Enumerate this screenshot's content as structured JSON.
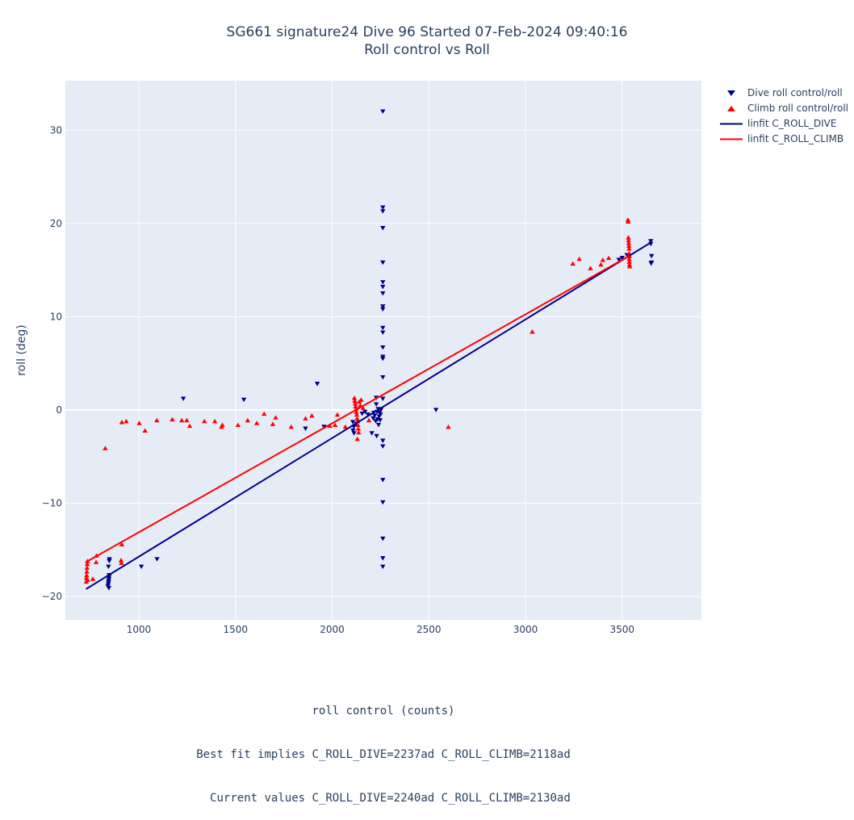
{
  "title": {
    "line1": "SG661 signature24 Dive 96 Started 07-Feb-2024 09:40:16",
    "line2": "Roll control vs Roll"
  },
  "x_label_lines": {
    "line1": "roll control (counts)",
    "line2": "Best fit implies C_ROLL_DIVE=2237ad C_ROLL_CLIMB=2118ad",
    "line3": "  Current values C_ROLL_DIVE=2240ad C_ROLL_CLIMB=2130ad"
  },
  "colors": {
    "plot_bg": "#e5ecf6",
    "grid": "#ffffff",
    "tick_text": "#2a3f5f",
    "dive": "#00008b",
    "climb": "#ff0000"
  },
  "legend": [
    {
      "label": "Dive roll control/roll",
      "symbol": "triangle-down",
      "color": "#00008b"
    },
    {
      "label": "Climb roll control/roll",
      "symbol": "triangle-up",
      "color": "#ff0000"
    },
    {
      "label": "linfit C_ROLL_DIVE",
      "symbol": "line",
      "color": "#00008b"
    },
    {
      "label": "linfit C_ROLL_CLIMB",
      "symbol": "line",
      "color": "#ff0000"
    }
  ],
  "chart_data": {
    "type": "scatter",
    "title": "SG661 signature24 Dive 96 Started 07-Feb-2024 09:40:16 / Roll control vs Roll",
    "xlabel": "roll control (counts)",
    "ylabel": "roll (deg)",
    "xlim": [
      620,
      3910
    ],
    "ylim": [
      -22.5,
      35.3
    ],
    "xticks": [
      1000,
      1500,
      2000,
      2500,
      3000,
      3500
    ],
    "yticks": [
      -20,
      -10,
      0,
      10,
      20,
      30
    ],
    "grid": true,
    "legend_position": "top-right outside",
    "series": [
      {
        "name": "Dive roll control/roll",
        "marker": "triangle-down",
        "color": "#00008b",
        "points": [
          [
            840,
            -18.9
          ],
          [
            842,
            -18.7
          ],
          [
            843,
            -18.5
          ],
          [
            844,
            -18.3
          ],
          [
            845,
            -18.1
          ],
          [
            846,
            -17.9
          ],
          [
            847,
            -17.7
          ],
          [
            845,
            -19.1
          ],
          [
            843,
            -16.8
          ],
          [
            847,
            -16.2
          ],
          [
            848,
            -16.0
          ],
          [
            1013,
            -16.8
          ],
          [
            1094,
            -16.0
          ],
          [
            1230,
            1.2
          ],
          [
            1543,
            1.1
          ],
          [
            1862,
            -2.0
          ],
          [
            1923,
            2.8
          ],
          [
            1958,
            -1.8
          ],
          [
            2107,
            -1.3
          ],
          [
            2108,
            -2.2
          ],
          [
            2112,
            -1.8
          ],
          [
            2113,
            -2.5
          ],
          [
            2125,
            -1.5
          ],
          [
            2155,
            -0.4
          ],
          [
            2170,
            -0.2
          ],
          [
            2185,
            -0.5
          ],
          [
            2205,
            -2.5
          ],
          [
            2212,
            -0.9
          ],
          [
            2215,
            -0.3
          ],
          [
            2220,
            -0.6
          ],
          [
            2225,
            -1.2
          ],
          [
            2228,
            0.6
          ],
          [
            2230,
            -2.8
          ],
          [
            2232,
            -0.2
          ],
          [
            2235,
            -1.0
          ],
          [
            2238,
            0.1
          ],
          [
            2240,
            -1.6
          ],
          [
            2243,
            -0.7
          ],
          [
            2245,
            -0.3
          ],
          [
            2248,
            -1.1
          ],
          [
            2250,
            -0.5
          ],
          [
            2252,
            0.0
          ],
          [
            2228,
            1.3
          ],
          [
            2262,
            32.0
          ],
          [
            2262,
            21.7
          ],
          [
            2262,
            21.3
          ],
          [
            2262,
            19.5
          ],
          [
            2262,
            15.8
          ],
          [
            2262,
            13.7
          ],
          [
            2262,
            13.2
          ],
          [
            2262,
            12.5
          ],
          [
            2262,
            11.1
          ],
          [
            2262,
            10.8
          ],
          [
            2262,
            8.8
          ],
          [
            2262,
            8.3
          ],
          [
            2262,
            6.7
          ],
          [
            2262,
            5.7
          ],
          [
            2262,
            5.5
          ],
          [
            2262,
            3.5
          ],
          [
            2262,
            1.2
          ],
          [
            2262,
            -3.3
          ],
          [
            2262,
            -3.9
          ],
          [
            2262,
            -7.5
          ],
          [
            2262,
            -9.9
          ],
          [
            2262,
            -13.8
          ],
          [
            2262,
            -15.9
          ],
          [
            2262,
            -16.8
          ],
          [
            2537,
            0.0
          ],
          [
            3483,
            16.1
          ],
          [
            3500,
            16.3
          ],
          [
            3525,
            16.6
          ],
          [
            3648,
            18.1
          ],
          [
            3648,
            17.8
          ],
          [
            3652,
            16.5
          ],
          [
            3652,
            15.8
          ],
          [
            3650,
            15.7
          ]
        ]
      },
      {
        "name": "Climb roll control/roll",
        "marker": "triangle-up",
        "color": "#ff0000",
        "points": [
          [
            728,
            -18.4
          ],
          [
            729,
            -18.0
          ],
          [
            730,
            -17.7
          ],
          [
            731,
            -17.3
          ],
          [
            732,
            -16.9
          ],
          [
            733,
            -16.5
          ],
          [
            734,
            -16.2
          ],
          [
            735,
            -18.2
          ],
          [
            762,
            -18.1
          ],
          [
            779,
            -16.3
          ],
          [
            781,
            -15.6
          ],
          [
            826,
            -4.1
          ],
          [
            908,
            -16.1
          ],
          [
            910,
            -16.4
          ],
          [
            912,
            -14.4
          ],
          [
            912,
            -1.3
          ],
          [
            935,
            -1.2
          ],
          [
            1002,
            -1.4
          ],
          [
            1032,
            -2.2
          ],
          [
            1093,
            -1.1
          ],
          [
            1173,
            -1.0
          ],
          [
            1222,
            -1.1
          ],
          [
            1248,
            -1.1
          ],
          [
            1263,
            -1.7
          ],
          [
            1339,
            -1.2
          ],
          [
            1393,
            -1.2
          ],
          [
            1428,
            -1.8
          ],
          [
            1432,
            -1.6
          ],
          [
            1513,
            -1.6
          ],
          [
            1563,
            -1.1
          ],
          [
            1610,
            -1.4
          ],
          [
            1648,
            -0.4
          ],
          [
            1693,
            -1.5
          ],
          [
            1708,
            -0.8
          ],
          [
            1788,
            -1.8
          ],
          [
            1862,
            -0.9
          ],
          [
            1895,
            -0.6
          ],
          [
            1988,
            -1.7
          ],
          [
            2015,
            -1.6
          ],
          [
            2027,
            -0.5
          ],
          [
            2068,
            -1.8
          ],
          [
            2115,
            1.3
          ],
          [
            2117,
            1.0
          ],
          [
            2119,
            0.7
          ],
          [
            2121,
            0.4
          ],
          [
            2123,
            0.1
          ],
          [
            2125,
            -0.2
          ],
          [
            2127,
            -0.5
          ],
          [
            2129,
            -0.9
          ],
          [
            2131,
            -1.2
          ],
          [
            2133,
            -1.6
          ],
          [
            2135,
            -2.0
          ],
          [
            2137,
            -2.4
          ],
          [
            2130,
            -3.1
          ],
          [
            2140,
            0.9
          ],
          [
            2145,
            0.5
          ],
          [
            2150,
            1.1
          ],
          [
            2160,
            0.2
          ],
          [
            2190,
            -1.1
          ],
          [
            2601,
            -1.8
          ],
          [
            3035,
            8.4
          ],
          [
            3245,
            15.7
          ],
          [
            3278,
            16.2
          ],
          [
            3336,
            15.2
          ],
          [
            3390,
            15.6
          ],
          [
            3400,
            16.1
          ],
          [
            3430,
            16.3
          ],
          [
            3530,
            20.4
          ],
          [
            3531,
            20.2
          ],
          [
            3532,
            18.5
          ],
          [
            3533,
            18.2
          ],
          [
            3534,
            17.9
          ],
          [
            3535,
            17.6
          ],
          [
            3536,
            17.3
          ],
          [
            3537,
            16.8
          ],
          [
            3538,
            16.5
          ],
          [
            3536,
            16.2
          ],
          [
            3537,
            15.9
          ],
          [
            3538,
            15.6
          ],
          [
            3539,
            15.4
          ]
        ]
      },
      {
        "name": "linfit C_ROLL_DIVE",
        "mode": "lines",
        "color": "#00008b",
        "points": [
          [
            727,
            -19.2
          ],
          [
            3652,
            18.0
          ]
        ]
      },
      {
        "name": "linfit C_ROLL_CLIMB",
        "mode": "lines",
        "color": "#ff0000",
        "points": [
          [
            727,
            -16.3
          ],
          [
            3535,
            16.5
          ]
        ]
      }
    ]
  }
}
